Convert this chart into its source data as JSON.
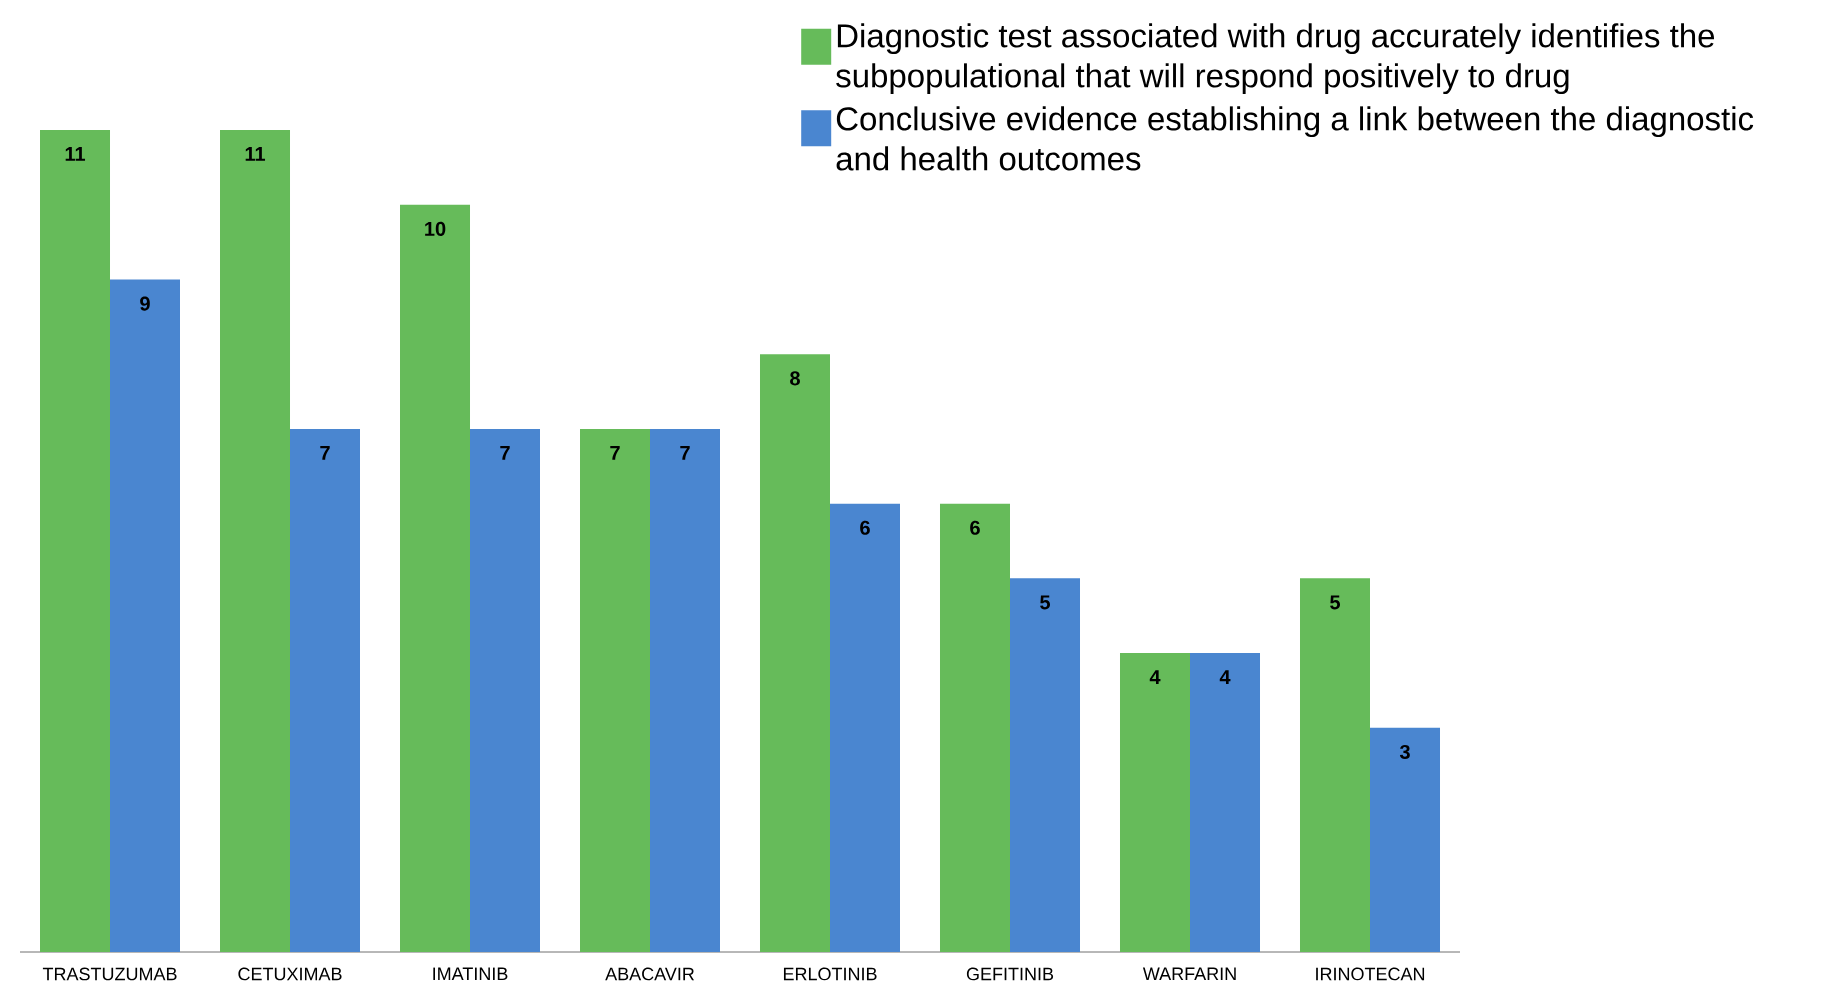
{
  "chart_data": {
    "type": "bar",
    "categories": [
      "TRASTUZUMAB",
      "CETUXIMAB",
      "IMATINIB",
      "ABACAVIR",
      "ERLOTINIB",
      "GEFITINIB",
      "WARFARIN",
      "IRINOTECAN"
    ],
    "series": [
      {
        "name": "Diagnostic test associated with drug accurately identifies the subpopulational that will respond positively to drug",
        "color": "#66bb5a",
        "values": [
          11,
          11,
          10,
          7,
          8,
          6,
          4,
          5
        ]
      },
      {
        "name": "Conclusive evidence establishing a link between the diagnostic and health outcomes",
        "color": "#4a86d0",
        "values": [
          9,
          7,
          7,
          7,
          6,
          5,
          4,
          3
        ]
      }
    ],
    "data_labels": true,
    "legend": "top right",
    "grid": false,
    "tick_labels": "x"
  }
}
